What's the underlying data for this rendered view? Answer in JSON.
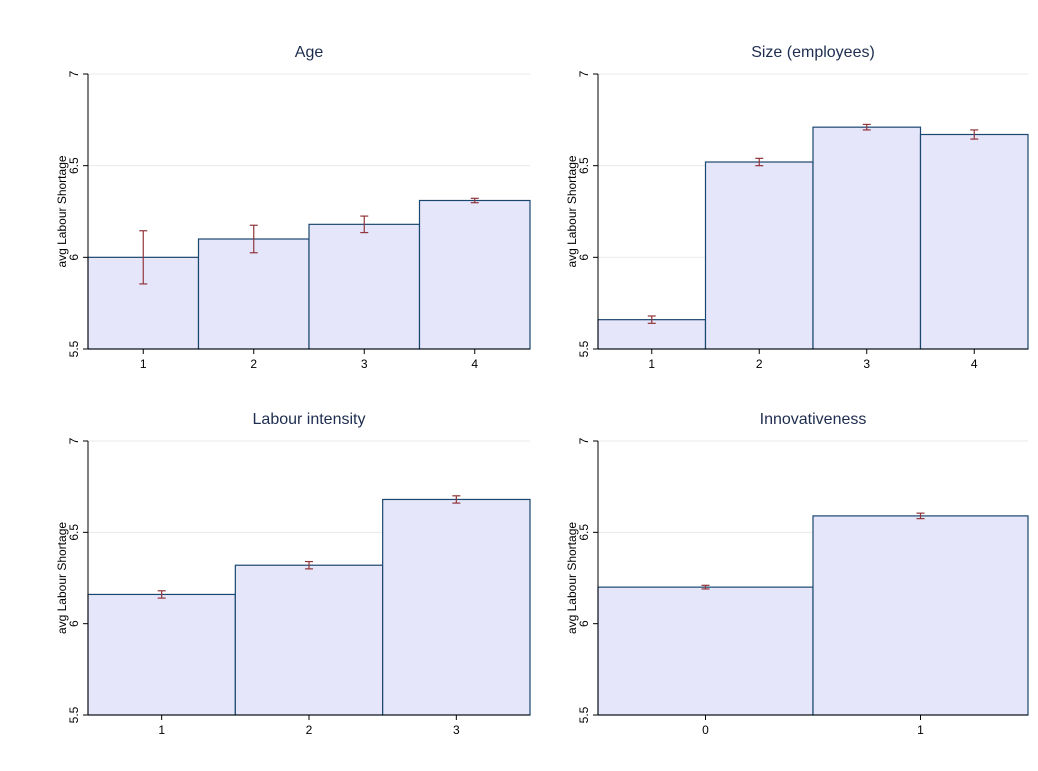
{
  "chart_data": [
    {
      "type": "bar",
      "title": "Age",
      "ylabel": "avg Labour Shortage",
      "categories": [
        "1",
        "2",
        "3",
        "4"
      ],
      "values": [
        6.0,
        6.1,
        6.18,
        6.31
      ],
      "errors": [
        0.145,
        0.075,
        0.045,
        0.012
      ],
      "color": "#e6e6fa",
      "edge_color": "#1a476f",
      "error_color": "#90353b",
      "ylim": [
        5.5,
        7
      ],
      "yticks": [
        5.5,
        6,
        6.5,
        7
      ],
      "grid": true
    },
    {
      "type": "bar",
      "title": "Size (employees)",
      "ylabel": "avg Labour Shortage",
      "categories": [
        "1",
        "2",
        "3",
        "4"
      ],
      "values": [
        5.66,
        6.52,
        6.71,
        6.67
      ],
      "errors": [
        0.02,
        0.02,
        0.015,
        0.025
      ],
      "color": "#e6e6fa",
      "edge_color": "#1a476f",
      "error_color": "#90353b",
      "ylim": [
        5.5,
        7
      ],
      "yticks": [
        5.5,
        6,
        6.5,
        7
      ],
      "grid": true
    },
    {
      "type": "bar",
      "title": "Labour intensity",
      "ylabel": "avg Labour Shortage",
      "categories": [
        "1",
        "2",
        "3"
      ],
      "values": [
        6.16,
        6.32,
        6.68
      ],
      "errors": [
        0.02,
        0.02,
        0.02
      ],
      "color": "#e6e6fa",
      "edge_color": "#1a476f",
      "error_color": "#90353b",
      "ylim": [
        5.5,
        7
      ],
      "yticks": [
        5.5,
        6,
        6.5,
        7
      ],
      "grid": true
    },
    {
      "type": "bar",
      "title": "Innovativeness",
      "ylabel": "avg Labour Shortage",
      "categories": [
        "0",
        "1"
      ],
      "values": [
        6.2,
        6.59
      ],
      "errors": [
        0.01,
        0.015
      ],
      "color": "#e6e6fa",
      "edge_color": "#1a476f",
      "error_color": "#90353b",
      "ylim": [
        5.5,
        7
      ],
      "yticks": [
        5.5,
        6,
        6.5,
        7
      ],
      "grid": true
    }
  ]
}
